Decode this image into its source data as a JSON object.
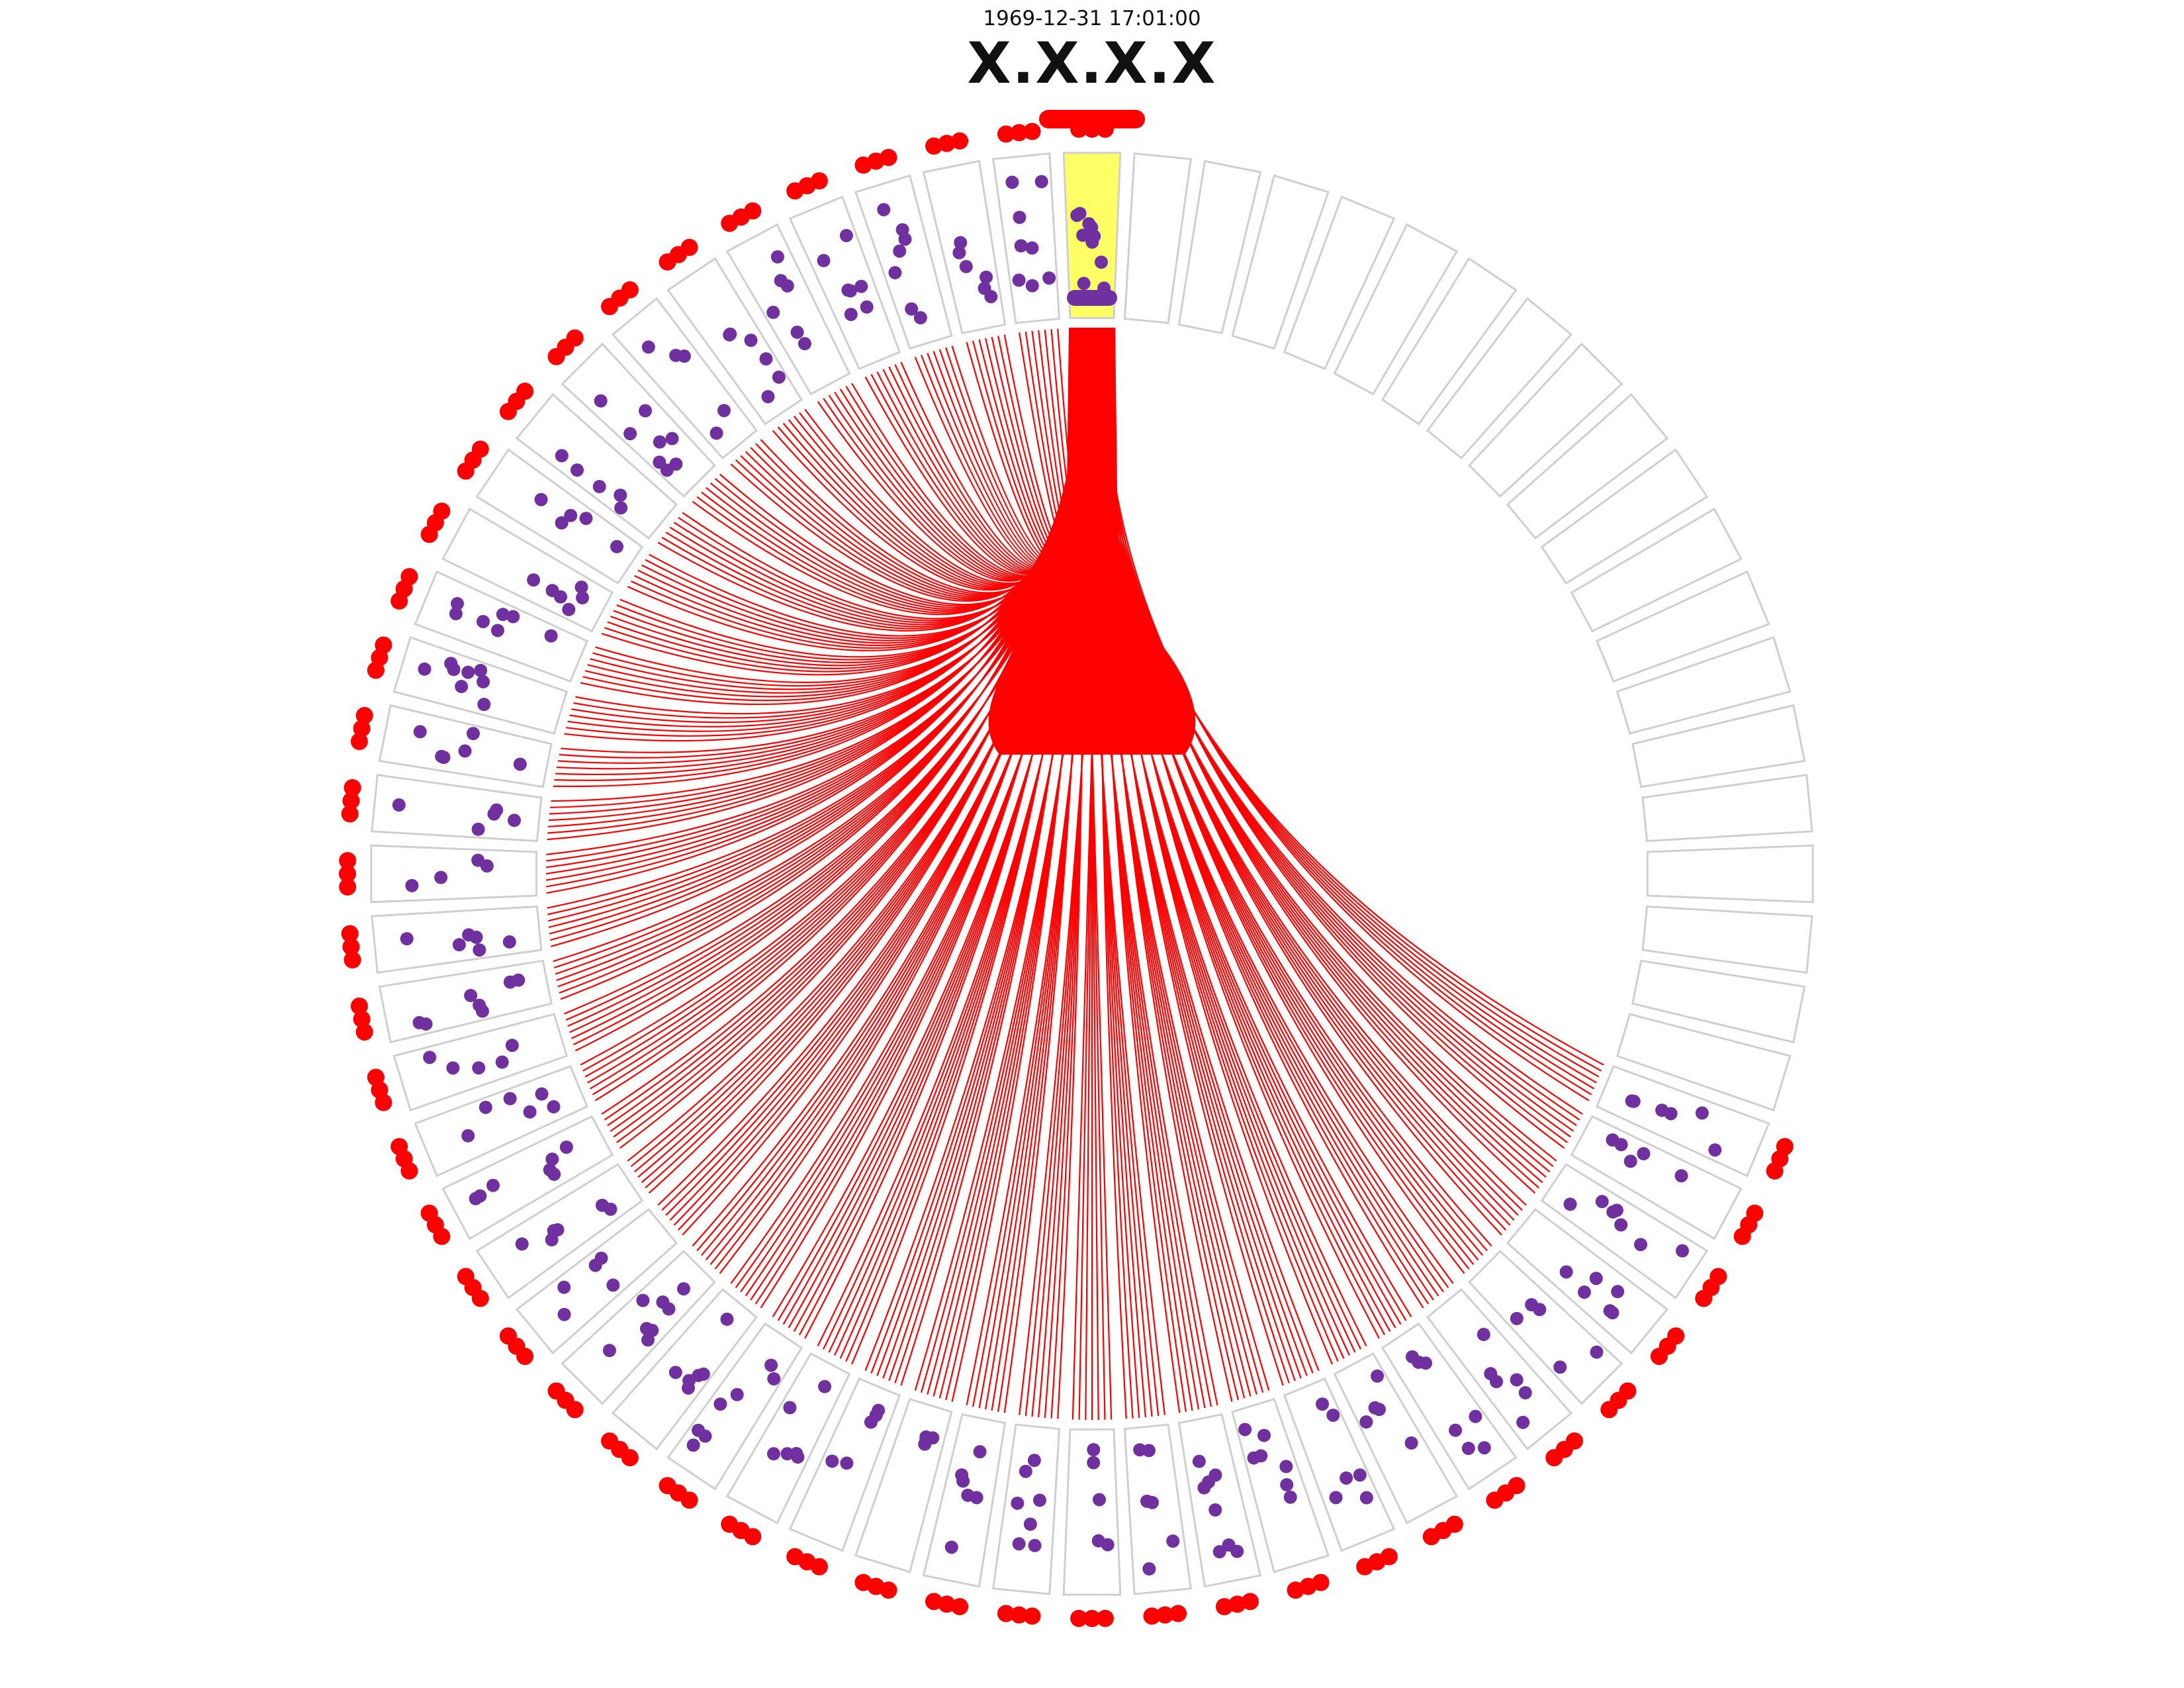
{
  "header": {
    "timestamp": "1969-12-31 17:01:00",
    "title": "X.X.X.X"
  },
  "colors": {
    "background": "#ffffff",
    "sector_border": "#cfcfcf",
    "highlight_fill": "#ffff66",
    "link": "#ff0000",
    "outer_marker": "#ff0000",
    "point": "#7030a0",
    "text": "#111111"
  },
  "chart_data": {
    "type": "radial-connection-plot",
    "sectors_total": 64,
    "active_sector": 0,
    "active_sectors": 45,
    "empty_sectors": 19,
    "links_from_active_sector": "to every sector with activity",
    "outer_ring": "red markers outside every active sector",
    "points_per_active_sector": [
      10,
      8,
      6,
      7,
      7,
      6,
      6,
      5,
      8,
      5,
      5,
      6,
      7,
      8,
      6,
      5,
      4,
      6,
      7,
      5,
      6,
      7,
      6,
      5,
      8,
      6,
      7,
      6,
      5,
      4,
      6,
      7,
      5,
      6,
      8,
      7,
      6,
      5,
      7,
      6,
      5,
      6,
      7,
      5,
      6
    ]
  }
}
